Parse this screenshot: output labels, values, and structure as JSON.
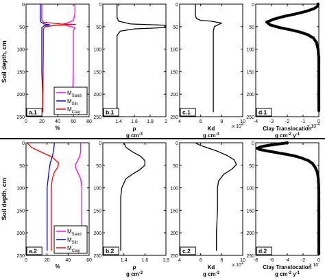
{
  "ylabel": "Soil depth, cm",
  "chart_data": [
    {
      "id": "a1",
      "row": 0,
      "col": 0,
      "type": "line",
      "panel_label": "a.1",
      "xlim": [
        0,
        80
      ],
      "ylim": [
        0,
        250
      ],
      "y_reversed": true,
      "xticks": [
        0,
        20,
        40,
        60,
        80
      ],
      "yticks": [
        0,
        50,
        100,
        150,
        200,
        250
      ],
      "xlabel": "%",
      "xlabel2": "",
      "exponent": "",
      "legend": {
        "position": "bottom-right",
        "entries": [
          {
            "base": "M",
            "sub": "Sand",
            "color": "#ff00ff"
          },
          {
            "base": "M",
            "sub": "Silt",
            "color": "#0000ff"
          },
          {
            "base": "M",
            "sub": "Clay",
            "color": "#ff0000"
          }
        ]
      },
      "series": [
        {
          "name": "MSand",
          "color": "#ff00ff",
          "points": [
            [
              62,
              0
            ],
            [
              62,
              20
            ],
            [
              61,
              30
            ],
            [
              60,
              36
            ],
            [
              55,
              40
            ],
            [
              48,
              44
            ],
            [
              52,
              48
            ],
            [
              62,
              52
            ],
            [
              60,
              60
            ],
            [
              60,
              100
            ],
            [
              60,
              150
            ],
            [
              59,
              200
            ],
            [
              59,
              240
            ]
          ]
        },
        {
          "name": "MSilt",
          "color": "#0000ff",
          "points": [
            [
              18,
              0
            ],
            [
              18,
              32
            ],
            [
              19,
              40
            ],
            [
              23,
              44
            ],
            [
              30,
              46
            ],
            [
              23,
              48
            ],
            [
              20,
              52
            ],
            [
              20,
              80
            ],
            [
              20,
              150
            ],
            [
              21,
              200
            ],
            [
              21,
              240
            ]
          ]
        },
        {
          "name": "MClay",
          "color": "#ff0000",
          "points": [
            [
              20,
              0
            ],
            [
              20,
              36
            ],
            [
              22,
              40
            ],
            [
              32,
              42
            ],
            [
              44,
              44
            ],
            [
              63,
              45
            ],
            [
              40,
              47
            ],
            [
              24,
              50
            ],
            [
              22,
              55
            ],
            [
              22,
              100
            ],
            [
              21,
              240
            ]
          ]
        }
      ]
    },
    {
      "id": "b1",
      "row": 0,
      "col": 1,
      "type": "line",
      "panel_label": "b.1",
      "xlim": [
        1.2,
        2.0
      ],
      "ylim": [
        0,
        250
      ],
      "y_reversed": true,
      "xticks": [
        1.4,
        1.6,
        1.8,
        2.0
      ],
      "xticklabels": [
        "1.4",
        "1.6",
        "1.8",
        "2"
      ],
      "yticks": [
        0,
        50,
        100,
        150,
        200,
        250
      ],
      "xlabel": "ρ",
      "xlabel2": "g cm-3",
      "exponent": "",
      "series": [
        {
          "name": "",
          "color": "#000000",
          "points": [
            [
              1.38,
              0
            ],
            [
              1.38,
              30
            ],
            [
              1.4,
              38
            ],
            [
              1.55,
              44
            ],
            [
              2.0,
              47
            ],
            [
              2.0,
              52
            ],
            [
              1.6,
              55
            ],
            [
              1.42,
              60
            ],
            [
              1.38,
              70
            ],
            [
              1.38,
              100
            ],
            [
              1.38,
              240
            ]
          ]
        }
      ]
    },
    {
      "id": "c1",
      "row": 0,
      "col": 2,
      "type": "line",
      "panel_label": "c.1",
      "xlim": [
        4,
        10
      ],
      "ylim": [
        0,
        250
      ],
      "y_reversed": true,
      "xticks": [
        4,
        6,
        8,
        10
      ],
      "yticks": [
        0,
        50,
        100,
        150,
        200,
        250
      ],
      "xlabel": "Kd",
      "xlabel2": "g cm-3",
      "exponent": "x 10^4",
      "series": [
        {
          "name": "",
          "color": "#000000",
          "points": [
            [
              5.5,
              0
            ],
            [
              5.5,
              10
            ],
            [
              5.5,
              25
            ],
            [
              5.6,
              32
            ],
            [
              6.0,
              36
            ],
            [
              7.0,
              38
            ],
            [
              8.0,
              42
            ],
            [
              7.3,
              50
            ],
            [
              7.2,
              60
            ],
            [
              7.2,
              100
            ],
            [
              7.2,
              240
            ]
          ]
        }
      ]
    },
    {
      "id": "d1",
      "row": 0,
      "col": 3,
      "type": "line",
      "panel_label": "d.1",
      "xlim": [
        -4,
        0
      ],
      "ylim": [
        0,
        250
      ],
      "y_reversed": true,
      "xticks": [
        -4,
        -3,
        -2,
        -1,
        0
      ],
      "yticks": [
        0,
        50,
        100,
        150,
        200,
        250
      ],
      "xlabel": "Clay Translocation",
      "xlabel2": "g cm-2 y-1",
      "exponent": "x 10^-4",
      "marker": "dot",
      "series": [
        {
          "name": "",
          "color": "#000000",
          "points": [
            [
              -0.05,
              0
            ],
            [
              -0.1,
              5
            ],
            [
              -0.3,
              10
            ],
            [
              -0.8,
              16
            ],
            [
              -1.5,
              22
            ],
            [
              -2.3,
              28
            ],
            [
              -2.9,
              34
            ],
            [
              -3.3,
              40
            ],
            [
              -3.1,
              46
            ],
            [
              -2.5,
              52
            ],
            [
              -1.8,
              57
            ],
            [
              -1.2,
              62
            ],
            [
              -0.7,
              68
            ],
            [
              -0.35,
              75
            ],
            [
              -0.15,
              85
            ],
            [
              -0.05,
              100
            ],
            [
              0,
              120
            ],
            [
              0,
              150
            ],
            [
              0,
              180
            ],
            [
              0,
              210
            ],
            [
              0,
              240
            ]
          ]
        }
      ]
    },
    {
      "id": "a2",
      "row": 1,
      "col": 0,
      "type": "line",
      "panel_label": "a.2",
      "xlim": [
        0,
        60
      ],
      "ylim": [
        0,
        250
      ],
      "y_reversed": true,
      "xticks": [
        0,
        20,
        40,
        60
      ],
      "yticks": [
        0,
        50,
        100,
        150,
        200,
        250
      ],
      "xlabel": "%",
      "xlabel2": "",
      "exponent": "",
      "legend": {
        "position": "bottom-right",
        "entries": [
          {
            "base": "M",
            "sub": "Sand",
            "color": "#ff00ff"
          },
          {
            "base": "M",
            "sub": "Silt",
            "color": "#0000ff"
          },
          {
            "base": "M",
            "sub": "Clay",
            "color": "#ff0000"
          }
        ]
      },
      "series": [
        {
          "name": "MSand",
          "color": "#ff00ff",
          "points": [
            [
              52,
              0
            ],
            [
              52,
              20
            ],
            [
              51,
              30
            ],
            [
              49,
              40
            ],
            [
              47,
              48
            ],
            [
              47,
              55
            ],
            [
              49,
              65
            ],
            [
              52,
              80
            ],
            [
              53,
              100
            ],
            [
              53,
              150
            ],
            [
              53,
              200
            ],
            [
              53,
              240
            ]
          ]
        },
        {
          "name": "MSilt",
          "color": "#0000ff",
          "points": [
            [
              27,
              0
            ],
            [
              26,
              20
            ],
            [
              25,
              30
            ],
            [
              23,
              45
            ],
            [
              22,
              60
            ],
            [
              21,
              80
            ],
            [
              20,
              100
            ],
            [
              20,
              150
            ],
            [
              20,
              200
            ],
            [
              20,
              240
            ]
          ]
        },
        {
          "name": "MClay",
          "color": "#ff0000",
          "points": [
            [
              1,
              0
            ],
            [
              5,
              10
            ],
            [
              14,
              20
            ],
            [
              25,
              32
            ],
            [
              31,
              45
            ],
            [
              30,
              55
            ],
            [
              27,
              65
            ],
            [
              25,
              80
            ],
            [
              24,
              100
            ],
            [
              24,
              150
            ],
            [
              24,
              200
            ],
            [
              24,
              240
            ]
          ]
        }
      ]
    },
    {
      "id": "b2",
      "row": 1,
      "col": 1,
      "type": "line",
      "panel_label": "b.2",
      "xlim": [
        1.2,
        1.8
      ],
      "ylim": [
        0,
        250
      ],
      "y_reversed": true,
      "xticks": [
        1.4,
        1.6,
        1.8
      ],
      "yticks": [
        0,
        50,
        100,
        150,
        200,
        250
      ],
      "xlabel": "ρ",
      "xlabel2": "g cm-3",
      "exponent": "",
      "series": [
        {
          "name": "",
          "color": "#000000",
          "points": [
            [
              1.4,
              0
            ],
            [
              1.42,
              10
            ],
            [
              1.48,
              20
            ],
            [
              1.56,
              30
            ],
            [
              1.6,
              40
            ],
            [
              1.6,
              50
            ],
            [
              1.55,
              60
            ],
            [
              1.48,
              70
            ],
            [
              1.42,
              80
            ],
            [
              1.4,
              90
            ],
            [
              1.38,
              100
            ],
            [
              1.37,
              120
            ],
            [
              1.37,
              160
            ],
            [
              1.37,
              200
            ],
            [
              1.37,
              240
            ]
          ]
        }
      ]
    },
    {
      "id": "c2",
      "row": 1,
      "col": 2,
      "type": "line",
      "panel_label": "c.2",
      "xlim": [
        4,
        10
      ],
      "ylim": [
        0,
        250
      ],
      "y_reversed": true,
      "xticks": [
        4,
        6,
        8,
        10
      ],
      "yticks": [
        0,
        50,
        100,
        150,
        200,
        250
      ],
      "xlabel": "Kd",
      "xlabel2": "g cm-3",
      "exponent": "x 10^4",
      "series": [
        {
          "name": "",
          "color": "#000000",
          "points": [
            [
              5.5,
              0
            ],
            [
              5.9,
              5
            ],
            [
              6.5,
              10
            ],
            [
              7.5,
              18
            ],
            [
              8.5,
              28
            ],
            [
              9.2,
              38
            ],
            [
              9.4,
              48
            ],
            [
              9.0,
              58
            ],
            [
              8.2,
              70
            ],
            [
              7.7,
              85
            ],
            [
              7.6,
              100
            ],
            [
              7.6,
              150
            ],
            [
              7.5,
              200
            ],
            [
              7.5,
              240
            ]
          ]
        }
      ]
    },
    {
      "id": "d2",
      "row": 1,
      "col": 3,
      "type": "line",
      "panel_label": "d.2",
      "xlim": [
        -8,
        0
      ],
      "ylim": [
        0,
        250
      ],
      "y_reversed": true,
      "xticks": [
        -8,
        -6,
        -4,
        -2,
        0
      ],
      "yticks": [
        0,
        50,
        100,
        150,
        200,
        250
      ],
      "xlabel": "Clay Translocation",
      "xlabel2": "g cm-2 y-1",
      "exponent": "x 10^-",
      "marker": "dot",
      "series": [
        {
          "name": "",
          "color": "#000000",
          "points": [
            [
              -4,
              0
            ],
            [
              -5.2,
              3
            ],
            [
              -6.5,
              6
            ],
            [
              -7.4,
              9
            ],
            [
              -7.8,
              12
            ],
            [
              -7.5,
              15
            ],
            [
              -6.6,
              18
            ],
            [
              -5.3,
              22
            ],
            [
              -4.0,
              26
            ],
            [
              -2.9,
              30
            ],
            [
              -2.0,
              35
            ],
            [
              -1.3,
              40
            ],
            [
              -0.8,
              46
            ],
            [
              -0.45,
              55
            ],
            [
              -0.2,
              65
            ],
            [
              -0.08,
              78
            ],
            [
              -0.02,
              95
            ],
            [
              0,
              115
            ],
            [
              0,
              140
            ],
            [
              0,
              170
            ],
            [
              0,
              200
            ],
            [
              0,
              230
            ],
            [
              0,
              250
            ]
          ]
        }
      ]
    }
  ]
}
